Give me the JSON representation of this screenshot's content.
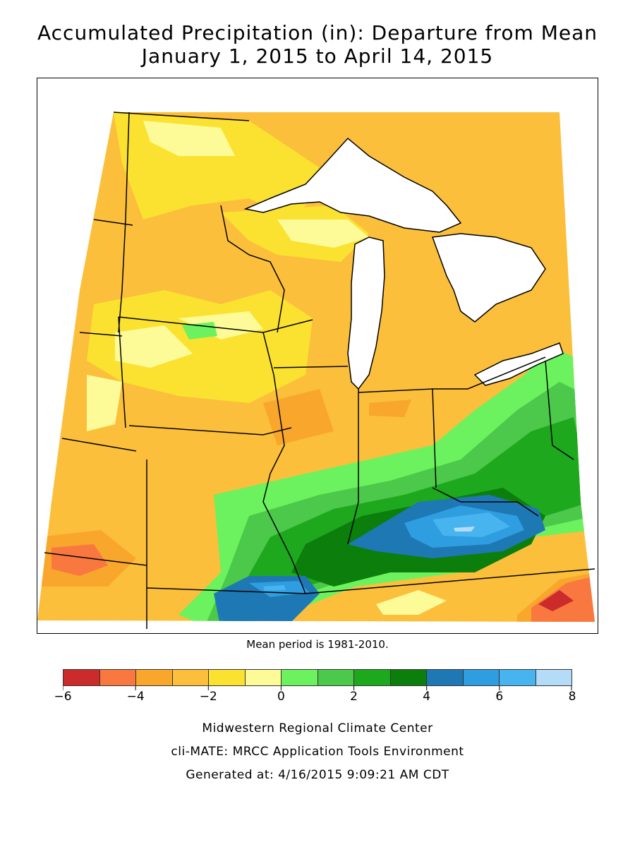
{
  "title_line1": "Accumulated Precipitation (in): Departure from Mean",
  "title_line2": "January 1, 2015 to April 14, 2015",
  "mean_period_note": "Mean period is 1981-2010.",
  "legend": {
    "colors": [
      "#cc2b2b",
      "#f97840",
      "#f9a62d",
      "#fbbf3c",
      "#fbe231",
      "#fdfb98",
      "#6bf25e",
      "#4cc84a",
      "#1ea81e",
      "#0c7e0c",
      "#1e78b4",
      "#2e9ee0",
      "#48b4ef",
      "#b4dcf8"
    ],
    "tick_labels": [
      "-6",
      "-4",
      "-2",
      "0",
      "2",
      "4",
      "6",
      "8"
    ]
  },
  "credits": {
    "line1": "Midwestern Regional Climate Center",
    "line2": "cli-MATE: MRCC Application Tools Environment",
    "line3": "Generated at: 4/16/2015 9:09:21 AM CDT"
  }
}
